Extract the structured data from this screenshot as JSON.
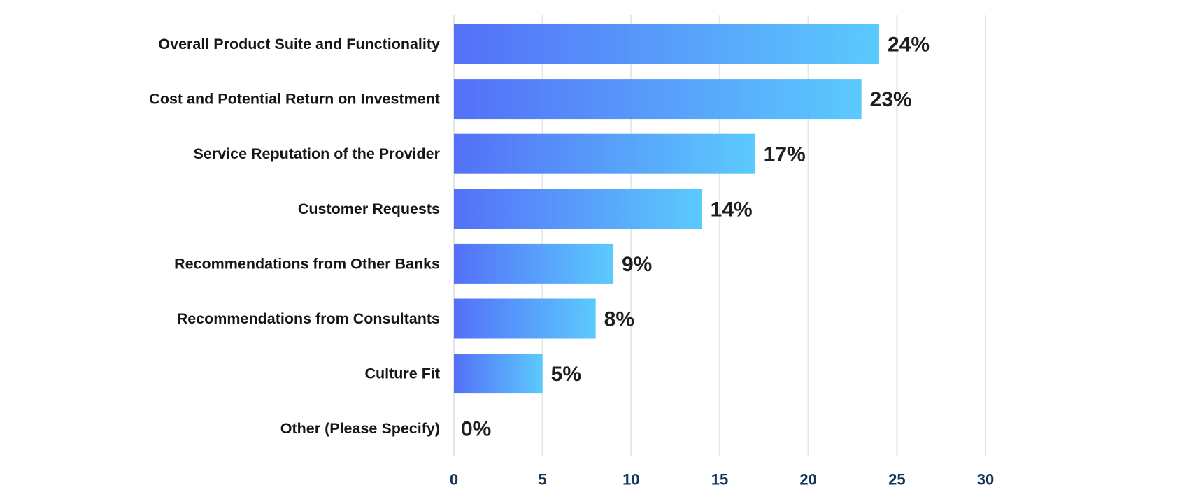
{
  "chart_data": {
    "type": "bar",
    "orientation": "horizontal",
    "categories": [
      "Overall Product Suite and Functionality",
      "Cost and Potential Return on Investment",
      "Service Reputation of the Provider",
      "Customer Requests",
      "Recommendations from Other Banks",
      "Recommendations from Consultants",
      "Culture Fit",
      "Other (Please Specify)"
    ],
    "values": [
      24,
      23,
      17,
      14,
      9,
      8,
      5,
      0
    ],
    "data_labels": [
      "24%",
      "23%",
      "17%",
      "14%",
      "9%",
      "8%",
      "5%",
      "0%"
    ],
    "xlim": [
      0,
      30
    ],
    "x_ticks": [
      0,
      5,
      10,
      15,
      20,
      25,
      30
    ],
    "x_tick_labels": [
      "0",
      "5",
      "10",
      "15",
      "20",
      "25",
      "30"
    ],
    "title": "",
    "xlabel": "",
    "ylabel": "",
    "grid": "vertical",
    "legend": "none",
    "colors": {
      "bar_gradient_start": "#5470f8",
      "bar_gradient_end": "#5bcafd",
      "gridline": "#e6e6e6",
      "category_text": "#161616",
      "data_label_text": "#1f1f1f",
      "tick_text": "#16365c"
    }
  }
}
